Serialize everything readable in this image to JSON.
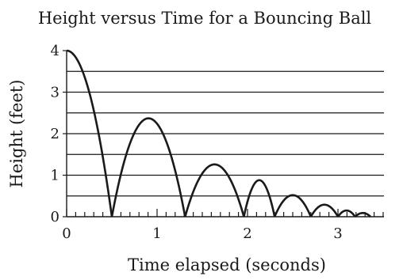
{
  "chart_data": {
    "type": "line",
    "title": "Height versus Time for a Bouncing Ball",
    "xlabel": "Time elapsed (seconds)",
    "ylabel": "Height (feet)",
    "xlim": [
      0,
      3.5
    ],
    "ylim": [
      0,
      4
    ],
    "x_ticks": [
      0,
      1,
      2,
      3
    ],
    "y_ticks": [
      0,
      1,
      2,
      3,
      4
    ],
    "x_minor_step": 0.1,
    "y_gridlines": [
      0.5,
      1,
      1.5,
      2,
      2.5,
      3,
      3.5
    ],
    "grid": true,
    "series": [
      {
        "name": "",
        "arcs": [
          {
            "start": 0,
            "end": 0.5,
            "peak_time": 0,
            "peak_height": 4
          },
          {
            "start": 0.5,
            "end": 1.31,
            "peak_time": 0.905,
            "peak_height": 2.37
          },
          {
            "start": 1.31,
            "end": 1.96,
            "peak_time": 1.635,
            "peak_height": 1.26
          },
          {
            "start": 1.96,
            "end": 2.3,
            "peak_time": 2.13,
            "peak_height": 0.88
          },
          {
            "start": 2.3,
            "end": 2.7,
            "peak_time": 2.5,
            "peak_height": 0.52
          },
          {
            "start": 2.7,
            "end": 3.0,
            "peak_time": 2.85,
            "peak_height": 0.29
          },
          {
            "start": 3.0,
            "end": 3.19,
            "peak_time": 3.095,
            "peak_height": 0.15
          },
          {
            "start": 3.19,
            "end": 3.36,
            "peak_time": 3.275,
            "peak_height": 0.09
          }
        ]
      }
    ]
  }
}
